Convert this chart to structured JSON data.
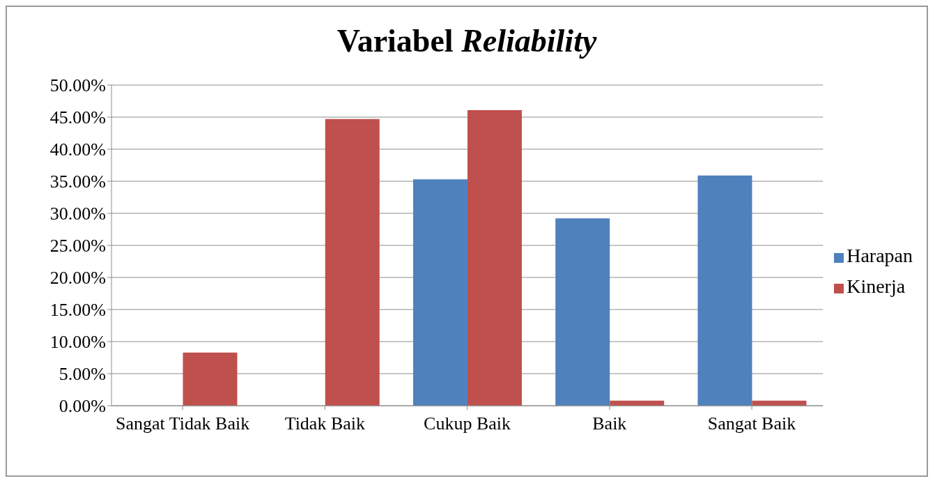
{
  "chart_data": {
    "type": "bar",
    "title": "Variabel Reliability",
    "categories": [
      "Sangat Tidak Baik",
      "Tidak Baik",
      "Cukup Baik",
      "Baik",
      "Sangat Baik"
    ],
    "series": [
      {
        "name": "Harapan",
        "color": "#4f81bd",
        "values": [
          0,
          0,
          35.3,
          29.2,
          35.9
        ]
      },
      {
        "name": "Kinerja",
        "color": "#c0504d",
        "values": [
          8.3,
          44.7,
          46.1,
          0.8,
          0.8
        ]
      }
    ],
    "ylim": [
      0,
      50
    ],
    "yticks": [
      {
        "value": 0,
        "label": "0.00%"
      },
      {
        "value": 5,
        "label": "5.00%"
      },
      {
        "value": 10,
        "label": "10.00%"
      },
      {
        "value": 15,
        "label": "15.00%"
      },
      {
        "value": 20,
        "label": "20.00%"
      },
      {
        "value": 25,
        "label": "25.00%"
      },
      {
        "value": 30,
        "label": "30.00%"
      },
      {
        "value": 35,
        "label": "35.00%"
      },
      {
        "value": 40,
        "label": "40.00%"
      },
      {
        "value": 45,
        "label": "45.00%"
      },
      {
        "value": 50,
        "label": "50.00%"
      }
    ],
    "grid": "y",
    "legend": "right"
  }
}
